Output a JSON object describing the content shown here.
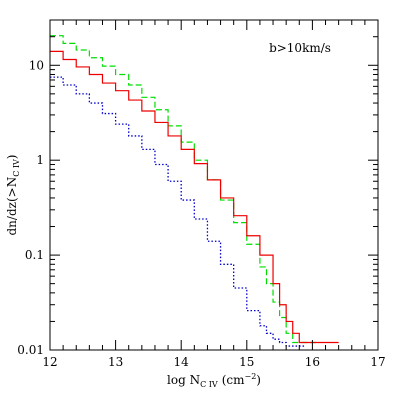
{
  "chart_data": {
    "type": "line",
    "title": "",
    "xlabel": "log N",
    "xlabel_sub": "C IV",
    "xlabel_unit": "(cm",
    "xlabel_unit_sup": "−2",
    "xlabel_unit_close": ")",
    "ylabel": "dn/dz(>N",
    "ylabel_sub": "C IV",
    "ylabel_close": ")",
    "annotation": "b>10km/s",
    "xlim": [
      12,
      17
    ],
    "ylim": [
      0.01,
      30
    ],
    "yscale": "log",
    "x_ticks": [
      "12",
      "13",
      "14",
      "15",
      "16",
      "17"
    ],
    "y_ticks": [
      {
        "value": 10,
        "label": "10"
      },
      {
        "value": 1,
        "label": "1"
      },
      {
        "value": 0.1,
        "label": "0.1"
      },
      {
        "value": 0.01,
        "label": "0.01"
      }
    ],
    "grid": false,
    "series": [
      {
        "style": "dashed",
        "color": "#00dd00",
        "x": [
          12.0,
          12.2,
          12.4,
          12.6,
          12.8,
          13.0,
          13.2,
          13.4,
          13.6,
          13.8,
          14.0,
          14.2,
          14.4,
          14.6,
          14.8,
          15.0,
          15.2,
          15.3,
          15.4,
          15.5,
          15.6,
          15.7,
          15.8,
          15.9
        ],
        "y": [
          20.5,
          17.0,
          14.5,
          12.0,
          9.8,
          8.0,
          6.2,
          4.6,
          3.4,
          2.3,
          1.55,
          1.0,
          0.62,
          0.38,
          0.22,
          0.13,
          0.075,
          0.05,
          0.032,
          0.022,
          0.015,
          0.012,
          0.012,
          0.012
        ]
      },
      {
        "style": "solid",
        "color": "#ee0000",
        "x": [
          12.0,
          12.2,
          12.4,
          12.6,
          12.8,
          13.0,
          13.2,
          13.4,
          13.6,
          13.8,
          14.0,
          14.2,
          14.4,
          14.6,
          14.8,
          15.0,
          15.2,
          15.4,
          15.5,
          15.6,
          15.7,
          15.8,
          15.9,
          16.0,
          16.1,
          16.2
        ],
        "y": [
          14.0,
          11.5,
          9.6,
          8.0,
          6.5,
          5.4,
          4.3,
          3.3,
          2.5,
          1.8,
          1.3,
          0.92,
          0.62,
          0.4,
          0.26,
          0.16,
          0.1,
          0.05,
          0.03,
          0.02,
          0.015,
          0.012,
          0.012,
          0.012,
          0.012,
          0.012
        ]
      },
      {
        "style": "dotted",
        "color": "#0000cc",
        "x": [
          12.0,
          12.2,
          12.4,
          12.6,
          12.8,
          13.0,
          13.2,
          13.4,
          13.6,
          13.8,
          14.0,
          14.2,
          14.4,
          14.6,
          14.8,
          15.0,
          15.2,
          15.3,
          15.4,
          15.5,
          15.6,
          15.7
        ],
        "y": [
          7.5,
          6.2,
          5.0,
          4.0,
          3.1,
          2.4,
          1.8,
          1.3,
          0.9,
          0.6,
          0.38,
          0.24,
          0.14,
          0.08,
          0.045,
          0.026,
          0.018,
          0.015,
          0.013,
          0.012,
          0.011,
          0.011
        ]
      }
    ]
  }
}
